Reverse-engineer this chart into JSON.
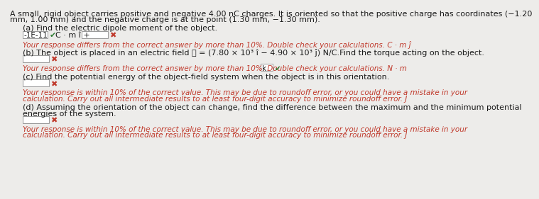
{
  "bg_color": "#edecea",
  "text_color_black": "#1a1a1a",
  "text_color_red": "#c0392b",
  "text_color_green": "#2e7d32",
  "fontsize_main": 8.0,
  "fontsize_feedback": 7.5,
  "header_line1": "A small, rigid object carries positive and negative 4.00 nC charges. It is oriented so that the positive charge has coordinates (−1.20",
  "header_line2": "mm, 1.00 mm) and the negative charge is at the point (1.30 mm, −1.30 mm).",
  "part_a_label": "(a) Find the electric dipole moment of the object.",
  "part_a_val": "-1E-11",
  "part_a_mid": "C · m î +",
  "part_a_feedback": "Your response differs from the correct answer by more than 10%. Double check your calculations. C · m ĵ",
  "part_b_label": "(b) The object is placed in an electric field ⃞ = (7.80 × 10³ î − 4.90 × 10³ ĵ) N/C.Find the torque acting on the object.",
  "part_b_feedback_pre": "Your response differs from the correct answer by more than 10%. Double check your calculations. N · m",
  "part_b_dropdown": "k",
  "part_c_label": "(c) Find the potential energy of the object-field system when the object is in this orientation.",
  "part_c_fb1": "Your response is within 10% of the correct value. This may be due to roundoff error, or you could have a mistake in your",
  "part_c_fb2": "calculation. Carry out all intermediate results to at least four-digit accuracy to minimize roundoff error. J",
  "part_d_label1": "(d) Assuming the orientation of the object can change, find the difference between the maximum and the minimum potential",
  "part_d_label2": "energies of the system.",
  "part_d_fb1": "Your response is within 10% of the correct value. This may be due to roundoff error, or you could have a mistake in your",
  "part_d_fb2": "calculation. Carry out all intermediate results to at least four-digit accuracy to minimize roundoff error. J",
  "check": "✔",
  "xmark": "✖"
}
